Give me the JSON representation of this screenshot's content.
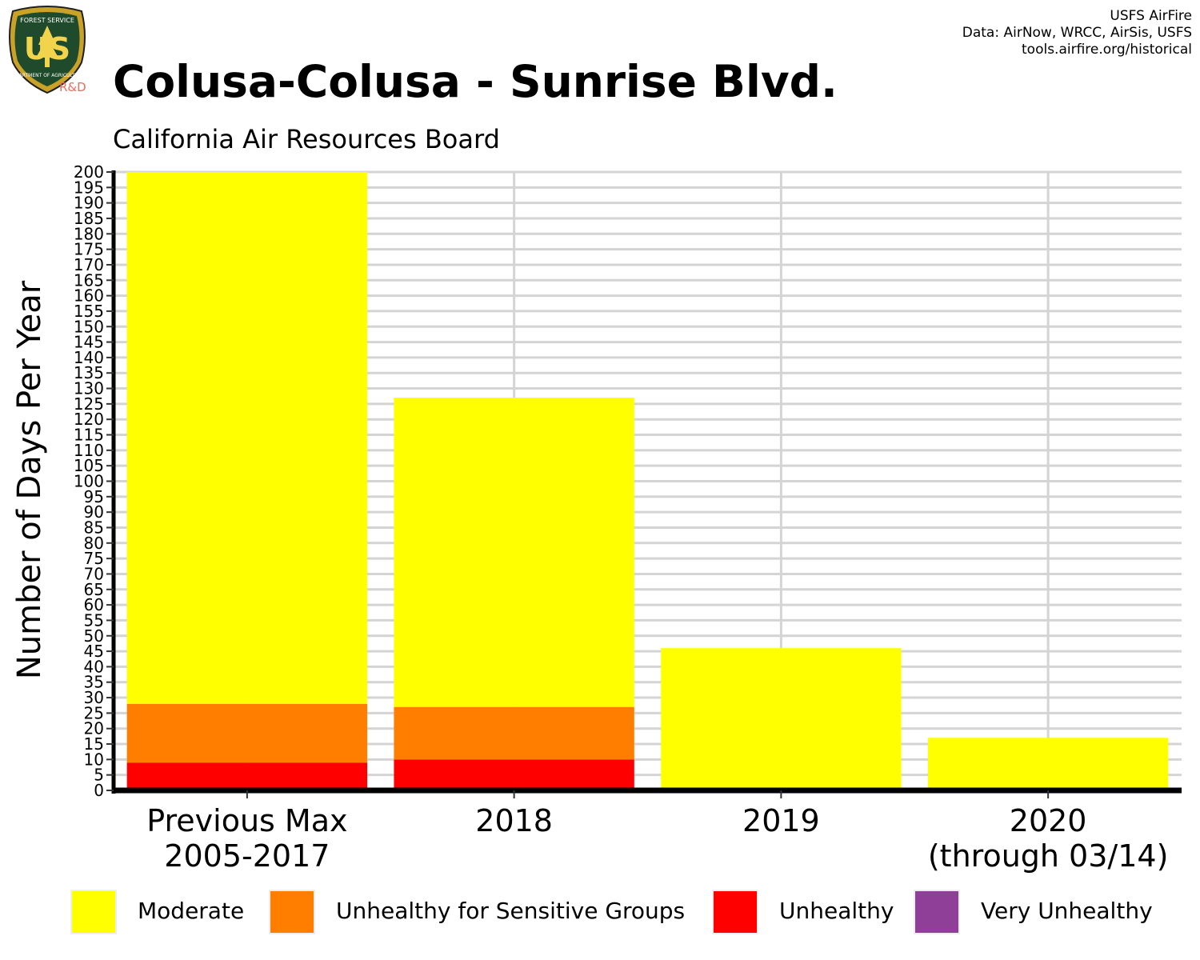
{
  "logo": {
    "top_text": "FOREST SERVICE",
    "letters": "US",
    "bottom_text": "DEPARTMENT OF AGRICULTURE",
    "badge": "R&D",
    "icon": "forest-service-shield-icon"
  },
  "credits": {
    "line1": "USFS AirFire",
    "line2": "Data: AirNow, WRCC, AirSis, USFS",
    "line3": "tools.airfire.org/historical"
  },
  "chart_data": {
    "type": "bar",
    "stacked": true,
    "title": "Colusa-Colusa - Sunrise Blvd.",
    "subtitle": "California Air Resources Board",
    "ylabel": "Number of Days Per Year",
    "xlabel": "",
    "ylim": [
      0,
      200
    ],
    "ytick_step": 5,
    "grid": true,
    "legend_position": "bottom",
    "categories": [
      [
        "Previous Max",
        "2005-2017"
      ],
      [
        "2018"
      ],
      [
        "2019"
      ],
      [
        "2020",
        "(through 03/14)"
      ]
    ],
    "series": [
      {
        "name": "Unhealthy",
        "color": "#ff0000",
        "values": [
          9,
          10,
          0,
          0
        ]
      },
      {
        "name": "Unhealthy for Sensitive Groups",
        "color": "#ff7e00",
        "values": [
          19,
          17,
          0,
          0
        ]
      },
      {
        "name": "Moderate",
        "color": "#ffff00",
        "values": [
          172,
          100,
          46,
          17
        ]
      },
      {
        "name": "Very Unhealthy",
        "color": "#8f3f97",
        "values": [
          0,
          0,
          0,
          0
        ]
      }
    ],
    "legend": [
      {
        "name": "Moderate",
        "color": "#ffff00"
      },
      {
        "name": "Unhealthy for Sensitive Groups",
        "color": "#ff7e00"
      },
      {
        "name": "Unhealthy",
        "color": "#ff0000"
      },
      {
        "name": "Very Unhealthy",
        "color": "#8f3f97"
      }
    ]
  }
}
